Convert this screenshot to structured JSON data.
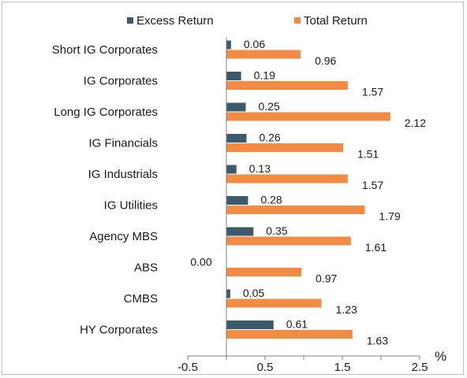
{
  "chart_data": {
    "type": "bar",
    "orientation": "horizontal",
    "categories": [
      "Short IG Corporates",
      "IG Corporates",
      "Long IG Corporates",
      "IG Financials",
      "IG Industrials",
      "IG Utilities",
      "Agency MBS",
      "ABS",
      "CMBS",
      "HY Corporates"
    ],
    "series": [
      {
        "name": "Excess Return",
        "color": "#3b5a6b",
        "values": [
          0.06,
          0.19,
          0.25,
          0.26,
          0.13,
          0.28,
          0.35,
          0.0,
          0.05,
          0.61
        ],
        "labels": [
          "0.06",
          "0.19",
          "0.25",
          "0.26",
          "0.13",
          "0.28",
          "0.35",
          "0.00",
          "0.05",
          "0.61"
        ]
      },
      {
        "name": "Total Return",
        "color": "#f28c45",
        "values": [
          0.96,
          1.57,
          2.12,
          1.51,
          1.57,
          1.79,
          1.61,
          0.97,
          1.23,
          1.63
        ],
        "labels": [
          "0.96",
          "1.57",
          "2.12",
          "1.51",
          "1.57",
          "1.79",
          "1.61",
          "0.97",
          "1.23",
          "1.63"
        ]
      }
    ],
    "xlim": [
      -0.5,
      2.5
    ],
    "x_ticks": [
      -0.5,
      0.5,
      1.5,
      2.5
    ],
    "x_tick_labels": [
      "-0.5",
      "0.5",
      "1.5",
      "2.5"
    ],
    "x_unit": "%",
    "legend_position": "top",
    "grid": false
  }
}
